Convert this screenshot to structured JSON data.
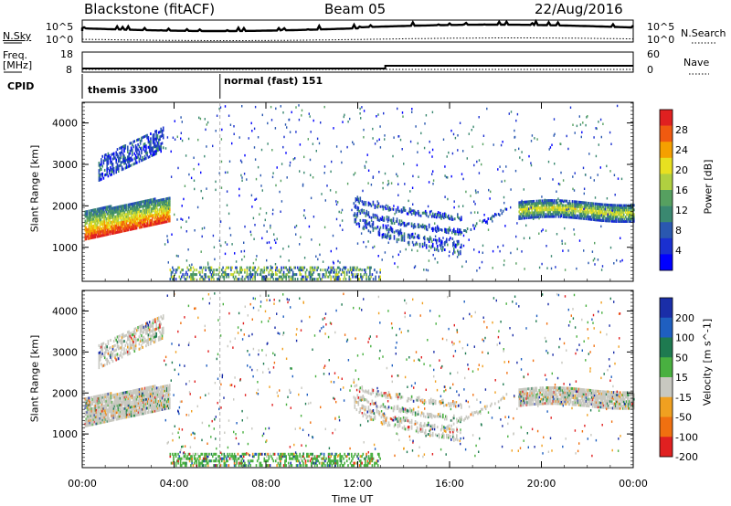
{
  "header": {
    "radar": "Blackstone (fitACF)",
    "beam": "Beam 05",
    "date": "22/Aug/2016"
  },
  "aux": {
    "nsky_label": "N.Sky",
    "nsearch_label": "N.Search",
    "noise_ticks_left": [
      "10^5",
      "10^0"
    ],
    "noise_ticks_right": [
      "10^5",
      "10^0"
    ],
    "freq_label_top": "Freq.",
    "freq_label_unit": "[MHz]",
    "freq_ticks": [
      "18",
      "8"
    ],
    "nave_label": "Nave",
    "nave_ticks": [
      "60",
      "0"
    ],
    "cpid_label": "CPID",
    "cpid_segments": [
      {
        "label": "themis 3300",
        "start": "00:00",
        "end": "06:00"
      },
      {
        "label": "normal (fast) 151",
        "start": "06:00",
        "end": "24:00"
      }
    ]
  },
  "chart_data": [
    {
      "type": "heatmap",
      "name": "power",
      "ylabel": "Slant Range [km]",
      "xlabel": "Time UT",
      "xlim": [
        "00:00",
        "24:00"
      ],
      "ylim": [
        180,
        4500
      ],
      "yticks": [
        1000,
        2000,
        3000,
        4000
      ],
      "xticks": [
        "00:00",
        "04:00",
        "08:00",
        "12:00",
        "16:00",
        "20:00",
        "00:00"
      ],
      "colorbar": {
        "label": "Power [dB]",
        "ticks": [
          "28",
          "24",
          "20",
          "16",
          "12",
          "8",
          "4"
        ],
        "colors": [
          "#e02020",
          "#f05a10",
          "#f5a000",
          "#e8e020",
          "#b0d040",
          "#56a060",
          "#3a8870",
          "#2a58b0",
          "#1a30d0",
          "#0000ff"
        ]
      },
      "features": [
        {
          "desc": "strong band",
          "t_start": 0.1,
          "t_end": 3.8,
          "range_start": 1200,
          "range_end": 2100
        },
        {
          "desc": "upper patch",
          "t_start": 0.7,
          "t_end": 3.5,
          "range_start": 2600,
          "range_end": 3500
        },
        {
          "desc": "arc",
          "t_start": 11.8,
          "t_end": 16.5,
          "range_start": 800,
          "range_end": 2200
        },
        {
          "desc": "evening band",
          "t_start": 19.0,
          "t_end": 24.0,
          "range_start": 1600,
          "range_end": 2100
        }
      ]
    },
    {
      "type": "heatmap",
      "name": "velocity",
      "ylabel": "Slant Range [km]",
      "xlabel": "Time UT",
      "xlim": [
        "00:00",
        "24:00"
      ],
      "ylim": [
        180,
        4500
      ],
      "yticks": [
        1000,
        2000,
        3000,
        4000
      ],
      "xticks": [
        "00:00",
        "04:00",
        "08:00",
        "12:00",
        "16:00",
        "20:00",
        "00:00"
      ],
      "colorbar": {
        "label": "Velocity [m s^-1]",
        "ticks": [
          "200",
          "100",
          "50",
          "15",
          "-15",
          "-50",
          "-100",
          "-200"
        ],
        "colors": [
          "#1a2ea8",
          "#1f5fc0",
          "#1e7a50",
          "#49b040",
          "#c8c8c0",
          "#f0a020",
          "#f07010",
          "#e02020"
        ]
      }
    }
  ],
  "footer": {
    "time_label": "Time UT"
  }
}
